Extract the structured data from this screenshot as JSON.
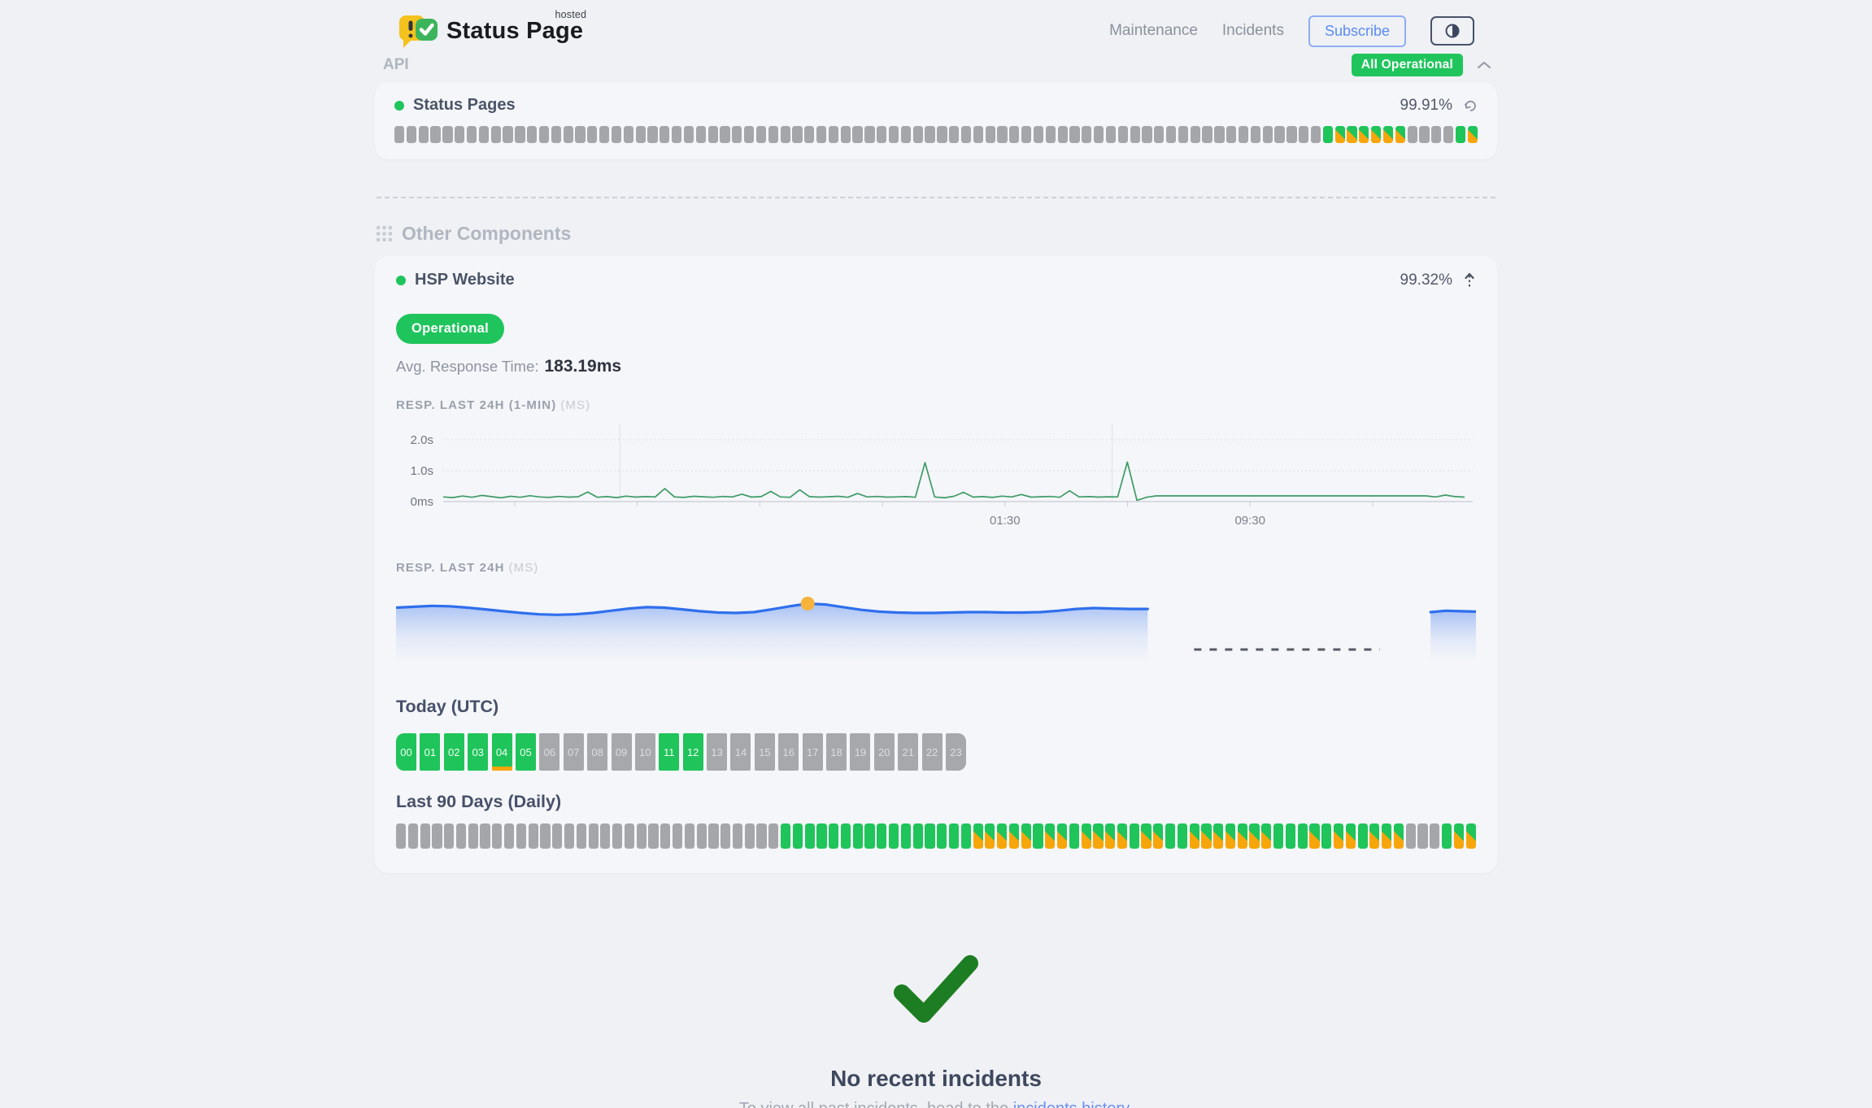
{
  "colors": {
    "green": "#1fc45a",
    "orange": "#f6a60a",
    "gray_block": "#a5a6aa",
    "badge_green": "#1fc55c",
    "accent_blue": "#5c8bf5",
    "link_blue": "#6b8ef3",
    "line_green": "#3d9b66",
    "line_blue": "#2f6fed",
    "dot_yellow": "#f6b33c",
    "check_green": "#1d7d22"
  },
  "header": {
    "brand": {
      "name": "Status Page",
      "tag": "hosted",
      "mark": "!"
    },
    "nav": [
      {
        "label": "Maintenance"
      },
      {
        "label": "Incidents"
      }
    ],
    "subscribe_label": "Subscribe",
    "status_badge": "All Operational"
  },
  "api": {
    "title": "API",
    "component": {
      "name": "Status Pages",
      "uptime": "99.91%"
    },
    "bar": {
      "leading_gray": 77,
      "pattern": "GSSSSSS----GS"
    }
  },
  "other": {
    "title": "Other Components",
    "component": {
      "name": "HSP Website",
      "uptime": "99.32%"
    },
    "badge": "Operational",
    "avg_label": "Avg. Response Time:",
    "avg_value": "183.19ms",
    "chart1_label": "RESP. LAST 24H (1-MIN)",
    "chart1_unit": "(MS)",
    "chart2_label": "RESP. LAST 24H",
    "chart2_unit": "(MS)",
    "today_title": "Today (UTC)",
    "hours": [
      {
        "label": "00",
        "state": "up"
      },
      {
        "label": "01",
        "state": "up"
      },
      {
        "label": "02",
        "state": "up"
      },
      {
        "label": "03",
        "state": "up"
      },
      {
        "label": "04",
        "state": "up",
        "degraded": true
      },
      {
        "label": "05",
        "state": "up"
      },
      {
        "label": "06",
        "state": "nodata"
      },
      {
        "label": "07",
        "state": "nodata"
      },
      {
        "label": "08",
        "state": "nodata"
      },
      {
        "label": "09",
        "state": "nodata"
      },
      {
        "label": "10",
        "state": "nodata"
      },
      {
        "label": "11",
        "state": "up"
      },
      {
        "label": "12",
        "state": "up"
      },
      {
        "label": "13",
        "state": "nodata"
      },
      {
        "label": "14",
        "state": "nodata"
      },
      {
        "label": "15",
        "state": "nodata"
      },
      {
        "label": "16",
        "state": "nodata"
      },
      {
        "label": "17",
        "state": "nodata"
      },
      {
        "label": "18",
        "state": "nodata"
      },
      {
        "label": "19",
        "state": "nodata"
      },
      {
        "label": "20",
        "state": "nodata"
      },
      {
        "label": "21",
        "state": "nodata"
      },
      {
        "label": "22",
        "state": "nodata"
      },
      {
        "label": "23",
        "state": "nodata"
      }
    ],
    "last90_title": "Last 90 Days (Daily)",
    "daily_bar": {
      "leading_gray": 32,
      "pattern": "GGGGGGGGGGGGGGGGSSSSSGSSGSSSSGSSGGSSSSSSSGGGSGSSGSSS---GSS"
    }
  },
  "incidents": {
    "title": "No recent incidents",
    "prefix": "To view all past incidents, head to the ",
    "link_label": "incidents history",
    "suffix": "."
  },
  "chart_data": [
    {
      "type": "line",
      "title": "RESP. LAST 24H (1-MIN) (MS)",
      "unit": "ms",
      "line_color": "#3d9b66",
      "y_ticks": [
        "2.0s",
        "1.0s",
        "0ms"
      ],
      "ylim": [
        0,
        2200
      ],
      "x_ticks": [
        {
          "label": "01:30",
          "pos": 0.55
        },
        {
          "label": "09:30",
          "pos": 0.79
        }
      ],
      "vgrid": [
        0.173,
        0.655
      ],
      "values": [
        150,
        130,
        180,
        140,
        200,
        160,
        120,
        170,
        140,
        190,
        150,
        135,
        165,
        145,
        155,
        310,
        140,
        160,
        130,
        175,
        145,
        160,
        150,
        420,
        150,
        135,
        170,
        155,
        140,
        165,
        150,
        240,
        145,
        160,
        330,
        150,
        140,
        380,
        160,
        145,
        155,
        170,
        140,
        260,
        150,
        165,
        145,
        150,
        160,
        140,
        1260,
        150,
        120,
        170,
        300,
        145,
        160,
        135,
        175,
        150,
        230,
        145,
        155,
        165,
        140,
        350,
        150,
        160,
        145,
        155,
        150,
        1280,
        40,
        140,
        185,
        185,
        185,
        185,
        185,
        185,
        185,
        185,
        185,
        185,
        185,
        185,
        185,
        185,
        185,
        185,
        185,
        185,
        185,
        185,
        185,
        185,
        185,
        185,
        185,
        185,
        185,
        185,
        185,
        150,
        210,
        160,
        145
      ]
    },
    {
      "type": "area",
      "title": "RESP. LAST 24H (MS)",
      "unit": "ms",
      "line_color": "#2f6fed",
      "dot_color": "#f6b33c",
      "main_span": [
        0,
        0.696
      ],
      "main": [
        196,
        198,
        200,
        199,
        196,
        192,
        188,
        184,
        181,
        180,
        181,
        184,
        189,
        194,
        197,
        196,
        192,
        188,
        185,
        184,
        186,
        192,
        199,
        205,
        203,
        197,
        191,
        187,
        185,
        184,
        184,
        185,
        186,
        186,
        185,
        185,
        186,
        189,
        193,
        195,
        194,
        193,
        193
      ],
      "dot_index": 23,
      "gap": {
        "from": 0.739,
        "to": 0.911,
        "style": "dashed"
      },
      "tail_span": [
        0.958,
        1.0
      ],
      "tail": [
        186,
        189,
        188,
        187
      ]
    }
  ]
}
